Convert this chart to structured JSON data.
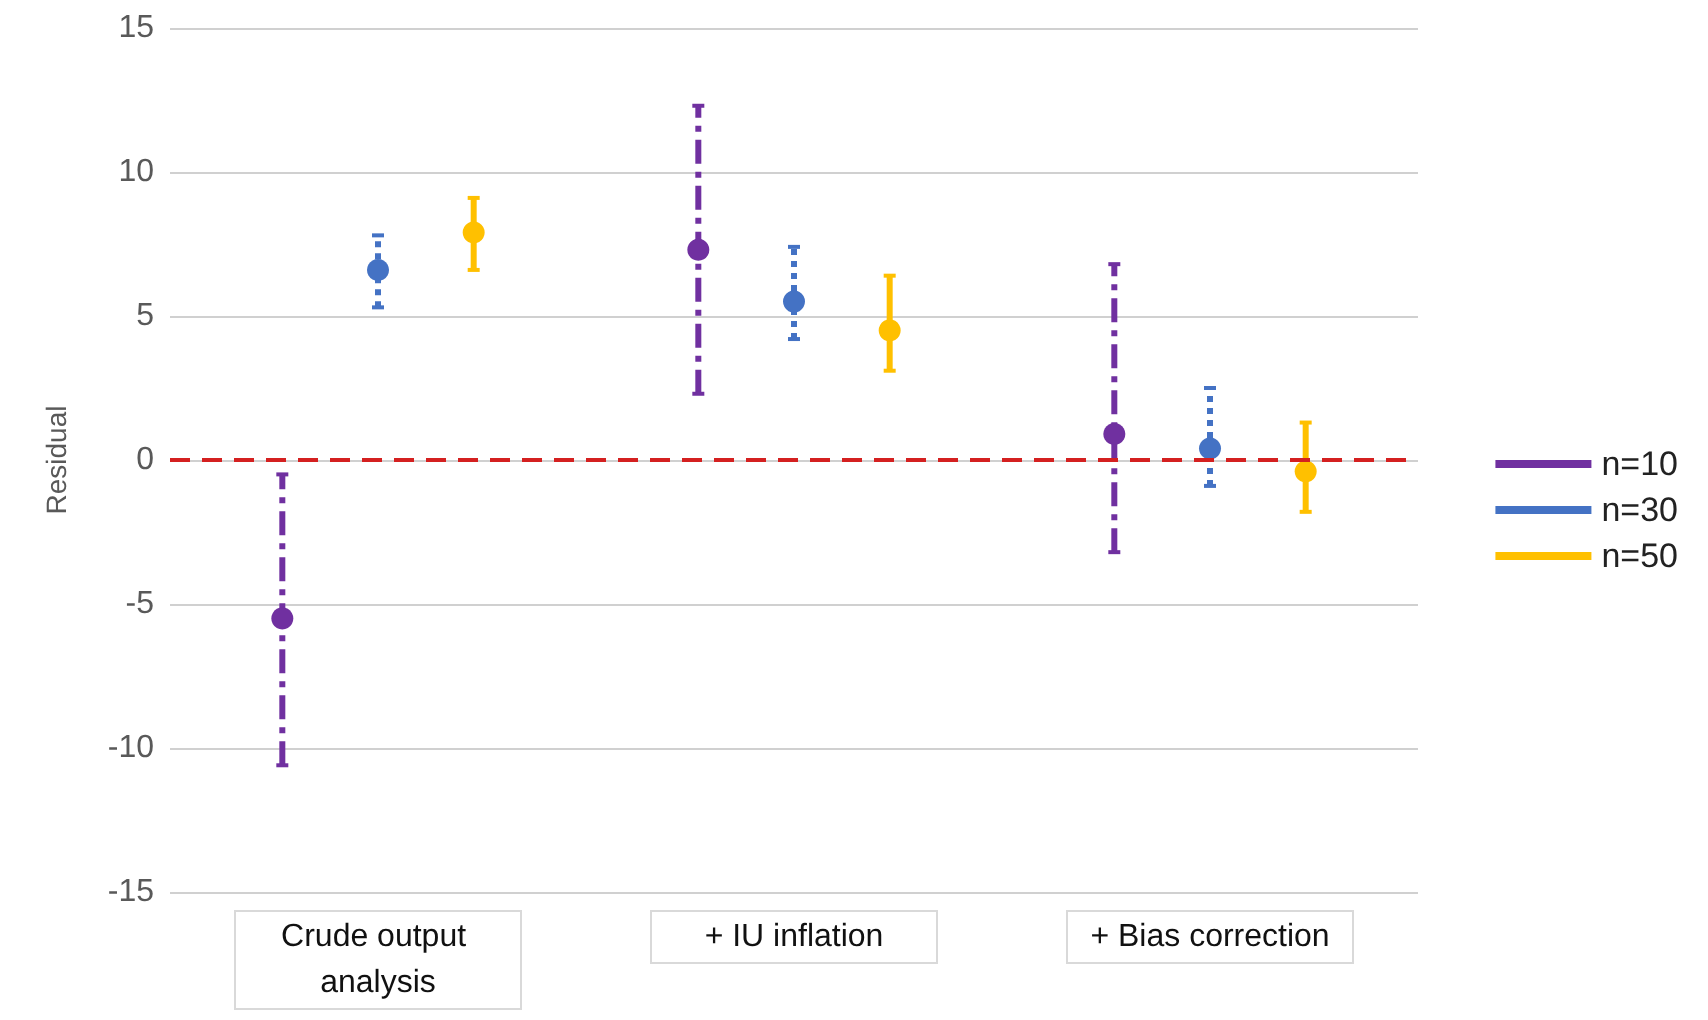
{
  "chart_data": {
    "type": "scatter",
    "ylabel": "Residual",
    "categories": [
      "Crude output analysis",
      "+ IU inflation",
      "+ Bias correction"
    ],
    "series": [
      {
        "name": "n=10",
        "color": "#7030a0",
        "line_style": "dashed",
        "values": [
          -5.5,
          7.3,
          0.9
        ],
        "errors": [
          [
            -10.6,
            -0.5
          ],
          [
            2.3,
            12.3
          ],
          [
            -3.2,
            6.8
          ]
        ]
      },
      {
        "name": "n=30",
        "color": "#4472c4",
        "line_style": "dotted",
        "values": [
          6.6,
          5.5,
          0.4
        ],
        "errors": [
          [
            5.3,
            7.8
          ],
          [
            4.2,
            7.4
          ],
          [
            -0.9,
            2.5
          ]
        ]
      },
      {
        "name": "n=50",
        "color": "#ffc000",
        "line_style": "solid",
        "values": [
          7.9,
          4.5,
          -0.4
        ],
        "errors": [
          [
            6.6,
            9.1
          ],
          [
            3.1,
            6.4
          ],
          [
            -1.8,
            1.3
          ]
        ]
      }
    ],
    "ylim": [
      -15,
      15
    ],
    "yticks": [
      -15,
      -10,
      -5,
      0,
      5,
      10,
      15
    ],
    "ref_lines": [
      {
        "axis": "y",
        "value": 0,
        "color": "#d42020",
        "line_style": "dashed"
      }
    ],
    "grid": "y",
    "legend": "right",
    "marker": "circle"
  }
}
